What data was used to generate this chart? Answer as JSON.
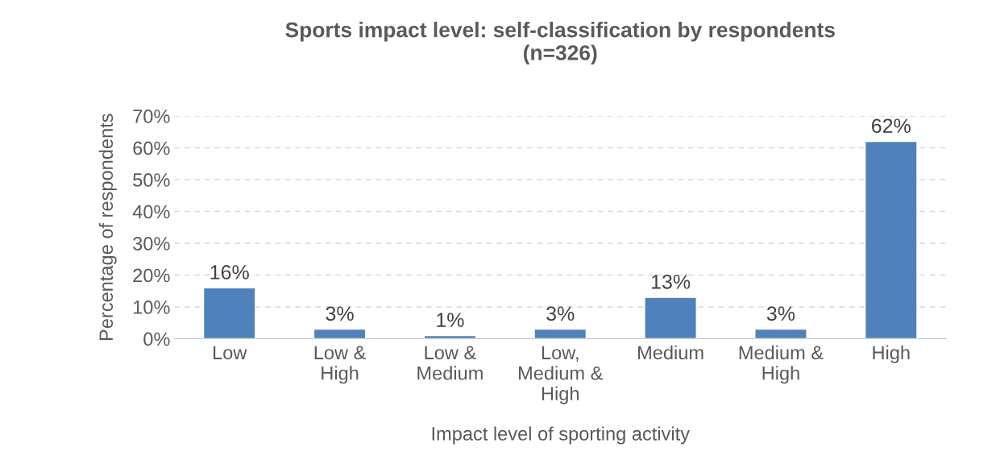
{
  "chart_data": {
    "type": "bar",
    "title": "Sports impact level: self-classification by respondents\n(n=326)",
    "xlabel": "Impact level of sporting activity",
    "ylabel": "Percentage of respondents",
    "categories": [
      "Low",
      "Low & High",
      "Low & Medium",
      "Low, Medium & High",
      "Medium",
      "Medium & High",
      "High"
    ],
    "values": [
      16,
      3,
      1,
      3,
      13,
      3,
      62
    ],
    "value_labels": [
      "16%",
      "3%",
      "1%",
      "3%",
      "13%",
      "3%",
      "62%"
    ],
    "color": "#4f81bd",
    "ylim": [
      0,
      70
    ],
    "yticks": [
      {
        "value": 0,
        "label": "0%"
      },
      {
        "value": 10,
        "label": "10%"
      },
      {
        "value": 20,
        "label": "20%"
      },
      {
        "value": 30,
        "label": "30%"
      },
      {
        "value": 40,
        "label": "40%"
      },
      {
        "value": 50,
        "label": "50%"
      },
      {
        "value": 60,
        "label": "60%"
      },
      {
        "value": 70,
        "label": "70%"
      }
    ],
    "grid": "y",
    "line_style": "dashed"
  }
}
